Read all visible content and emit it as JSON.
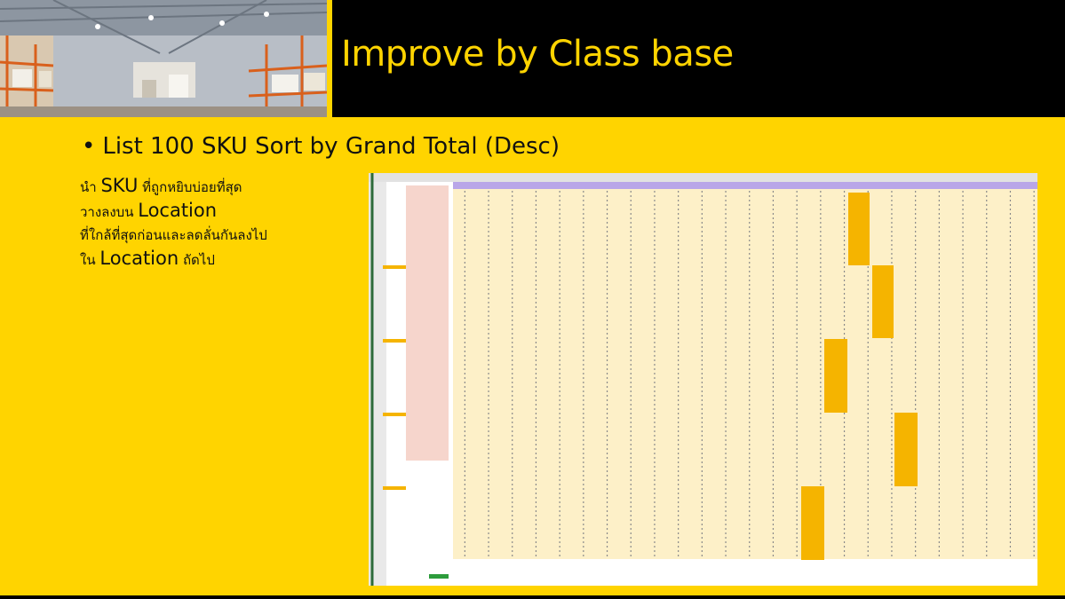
{
  "slide": {
    "title": "Improve by Class base",
    "bullet": {
      "symbol": "•",
      "text": "List 100 SKU Sort by Grand Total (Desc)"
    },
    "description": {
      "line1_prefix": "นำ ",
      "line1_highlight": "SKU",
      "line1_suffix": " ที่ถูกหยิบบ่อยที่สุด",
      "line2_prefix": "วางลงบน ",
      "line2_highlight": "Location",
      "line3": "ที่ใกล้ที่สุดก่อนและลดลั่นกันลงไป",
      "line4_prefix": "ใน ",
      "line4_highlight": "Location",
      "line4_suffix": " ถัดไป"
    }
  },
  "image": {
    "photo": "warehouse-racking-photo",
    "spreadsheet": "sku-location-spreadsheet-screenshot"
  },
  "colors": {
    "background": "#FFD400",
    "title_bar": "#000000",
    "title_text": "#FFD400",
    "cell_fill": "#FDF0C8",
    "highlight_block": "#F5B400",
    "sku_column": "#F6D5CC",
    "header_purple": "#B9A6E8"
  }
}
